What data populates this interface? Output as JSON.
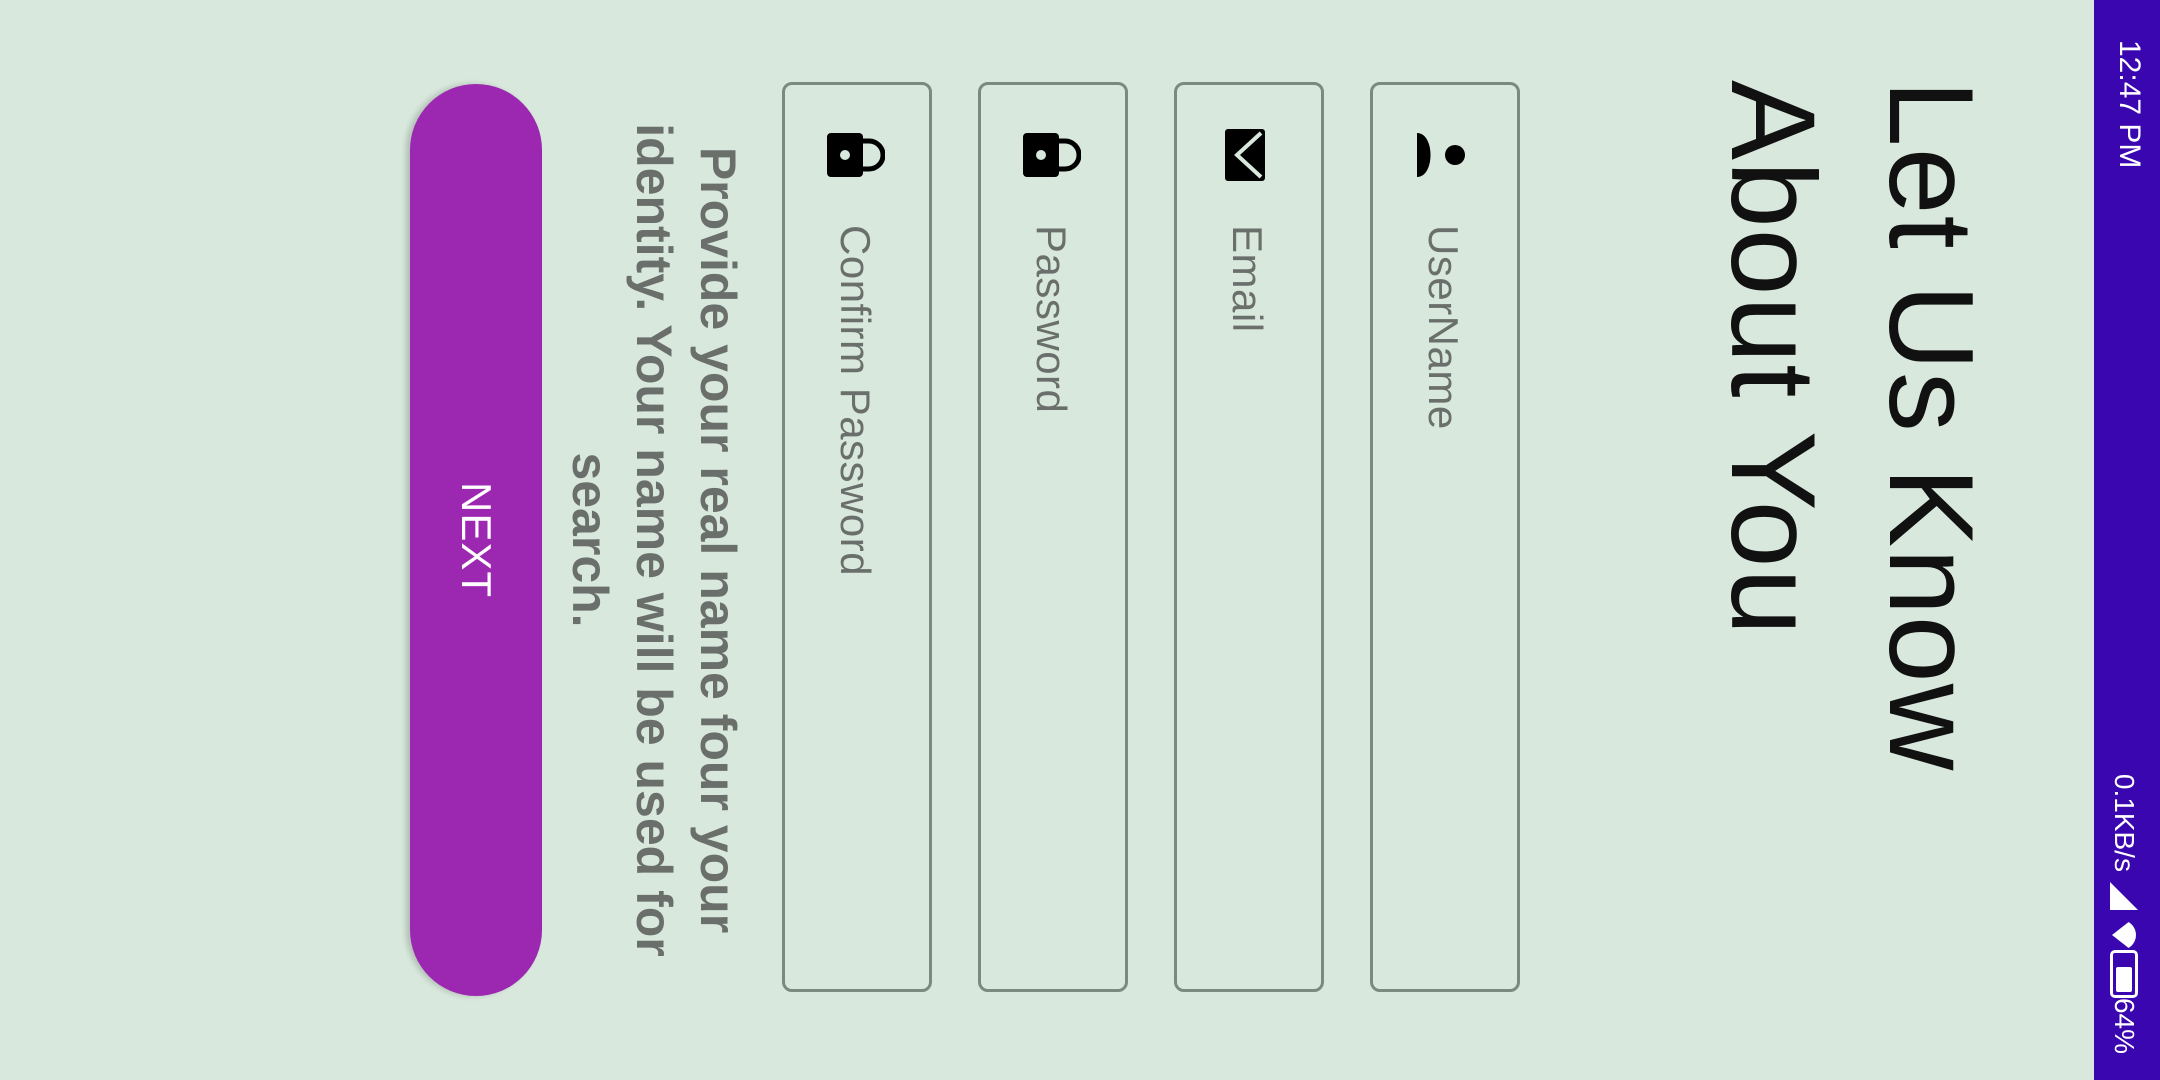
{
  "status_bar": {
    "time": "12:47 PM",
    "net_speed": "0.1KB/s",
    "battery": "64%",
    "color": "#3a06b0"
  },
  "header": {
    "title": "Let Us Know About You"
  },
  "form": {
    "fields": [
      {
        "label": "UserName",
        "icon": "person-icon"
      },
      {
        "label": "Email",
        "icon": "email-icon"
      },
      {
        "label": "Password",
        "icon": "lock-icon"
      },
      {
        "label": "Confirm Password",
        "icon": "lock-icon"
      }
    ]
  },
  "description": "Provide your real name four your identity. Your name will be used for search.",
  "next_button": {
    "label": "NEXT",
    "color": "#9c27b0"
  }
}
